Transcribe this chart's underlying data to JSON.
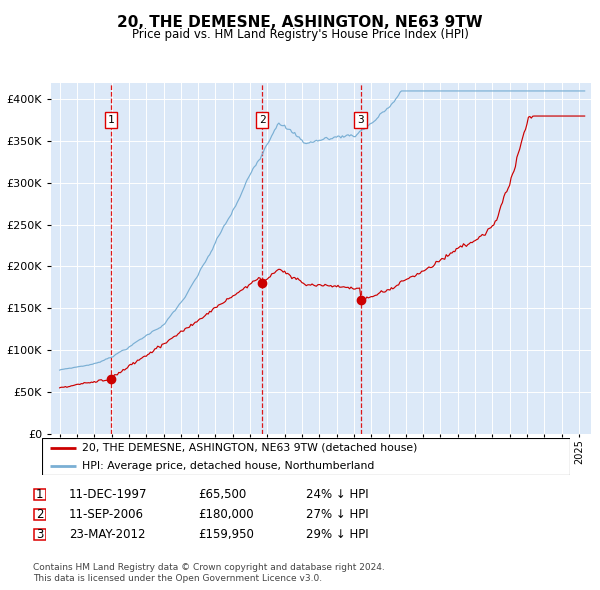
{
  "title": "20, THE DEMESNE, ASHINGTON, NE63 9TW",
  "subtitle": "Price paid vs. HM Land Registry's House Price Index (HPI)",
  "legend_red": "20, THE DEMESNE, ASHINGTON, NE63 9TW (detached house)",
  "legend_blue": "HPI: Average price, detached house, Northumberland",
  "sale1_label": "1",
  "sale1_date": "11-DEC-1997",
  "sale1_price": "£65,500",
  "sale1_hpi": "24% ↓ HPI",
  "sale1_year": 1997.95,
  "sale1_value": 65500,
  "sale2_label": "2",
  "sale2_date": "11-SEP-2006",
  "sale2_price": "£180,000",
  "sale2_hpi": "27% ↓ HPI",
  "sale2_year": 2006.7,
  "sale2_value": 180000,
  "sale3_label": "3",
  "sale3_date": "23-MAY-2012",
  "sale3_price": "£159,950",
  "sale3_hpi": "29% ↓ HPI",
  "sale3_year": 2012.39,
  "sale3_value": 159950,
  "footer1": "Contains HM Land Registry data © Crown copyright and database right 2024.",
  "footer2": "This data is licensed under the Open Government Licence v3.0.",
  "bg_color": "#dce9f8",
  "red_color": "#cc0000",
  "blue_color": "#7aafd4",
  "grid_color": "#ffffff",
  "dashed_color": "#dd0000",
  "ylim_max": 420000,
  "xlim_min": 1994.5,
  "xlim_max": 2025.7
}
